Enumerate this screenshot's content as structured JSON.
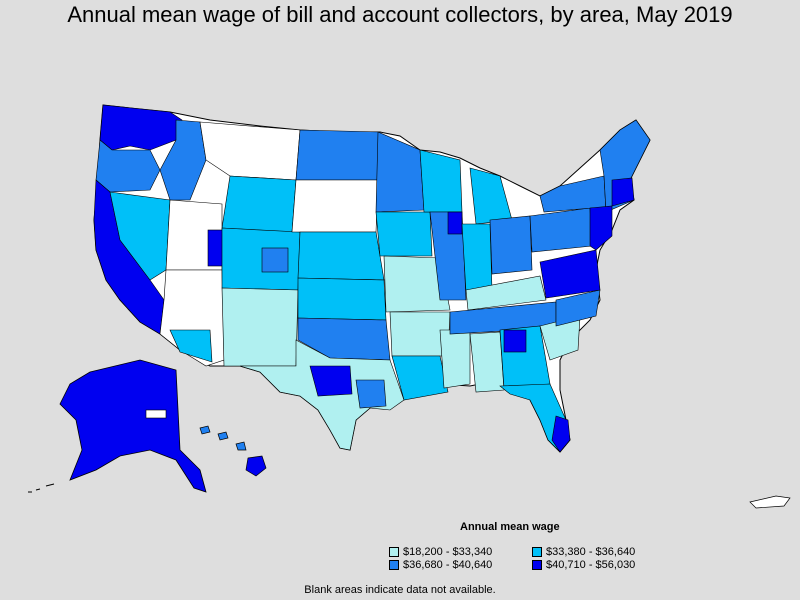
{
  "title": "Annual mean wage of bill and account collectors, by area, May 2019",
  "legend": {
    "title": "Annual mean wage",
    "items": [
      {
        "label": "$18,200 - $33,340",
        "color": "#b0f0f0"
      },
      {
        "label": "$33,380 - $36,640",
        "color": "#00c0f8"
      },
      {
        "label": "$36,680 - $40,640",
        "color": "#2080f0"
      },
      {
        "label": "$40,710 - $56,030",
        "color": "#0000f0"
      }
    ]
  },
  "footnote": "Blank areas indicate data not available.",
  "colors": {
    "background": "#dedede",
    "no_data": "#ffffff",
    "border": "#000000"
  }
}
